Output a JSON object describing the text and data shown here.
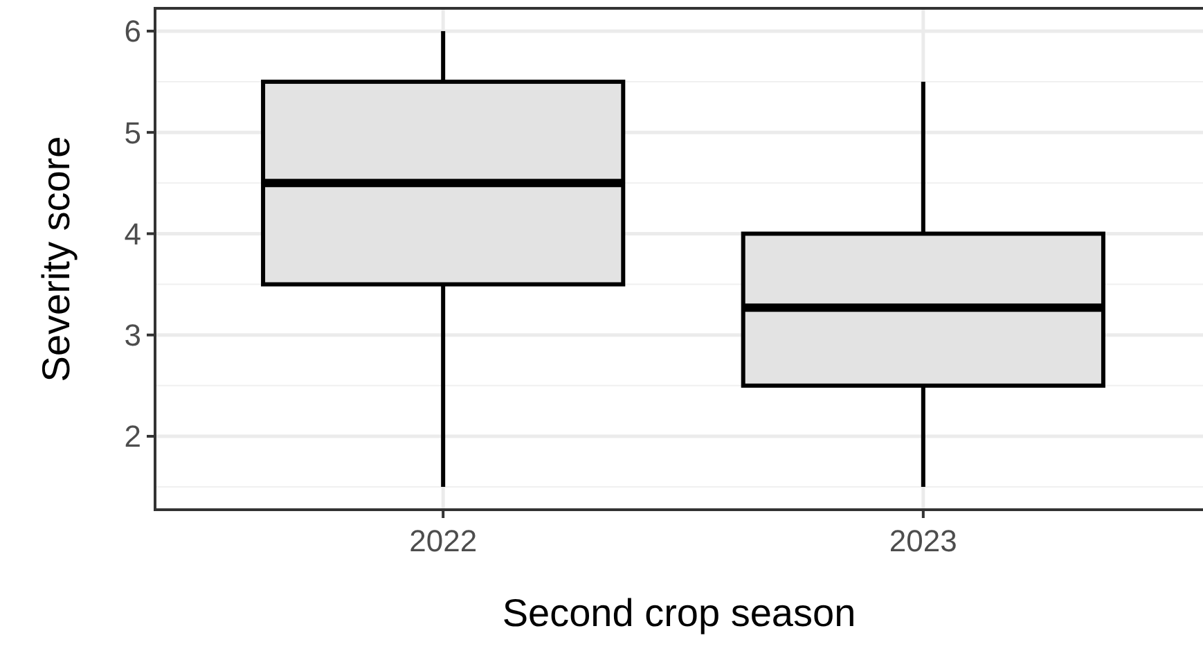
{
  "chart_data": {
    "type": "box",
    "xlabel": "Second crop season",
    "ylabel": "Severity score",
    "categories": [
      "2022",
      "2023"
    ],
    "boxes": [
      {
        "low": 1.5,
        "q1": 3.5,
        "median": 4.5,
        "q3": 5.5,
        "high": 6
      },
      {
        "low": 1.5,
        "q1": 2.5,
        "median": 3.27,
        "q3": 4,
        "high": 5.5
      }
    ],
    "color": "#e3e3e3",
    "ylim": [
      1.275,
      6.225
    ],
    "yticks": [
      2,
      3,
      4,
      5,
      6
    ],
    "grid": true
  }
}
